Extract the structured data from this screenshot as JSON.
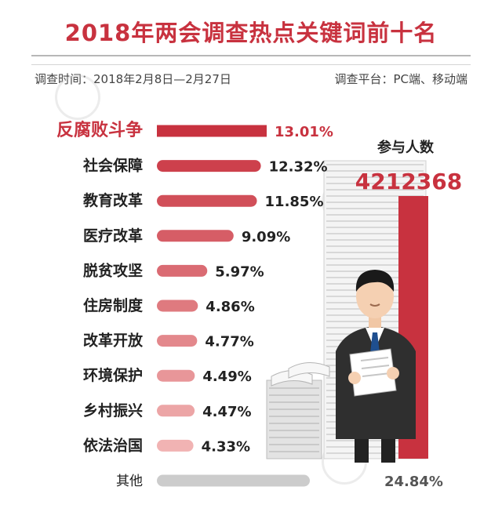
{
  "header": {
    "title": "2018年两会调查热点关键词前十名",
    "survey_time": "调查时间：2018年2月8日—2月27日",
    "survey_platform": "调查平台：PC端、移动端"
  },
  "participants": {
    "label": "参与人数",
    "value": "4212368"
  },
  "colors": {
    "accent": "#c8323f",
    "bar_start": "#c8323f",
    "bar_end": "#f1b3b3",
    "other_bar": "#cccccc",
    "highlight_label": "#c8323f"
  },
  "chart_data": {
    "type": "bar",
    "orientation": "horizontal",
    "categories": [
      "反腐败斗争",
      "社会保障",
      "教育改革",
      "医疗改革",
      "脱贫攻坚",
      "住房制度",
      "改革开放",
      "环境保护",
      "乡村振兴",
      "依法治国",
      "其他"
    ],
    "values": [
      13.01,
      12.32,
      11.85,
      9.09,
      5.97,
      4.86,
      4.77,
      4.49,
      4.47,
      4.33,
      24.84
    ],
    "labels": [
      "13.01%",
      "12.32%",
      "11.85%",
      "9.09%",
      "5.97%",
      "4.86%",
      "4.77%",
      "4.49%",
      "4.47%",
      "4.33%",
      "24.84%"
    ],
    "unit": "%",
    "highlight": "反腐败斗争",
    "grid": false,
    "legend": "none"
  }
}
